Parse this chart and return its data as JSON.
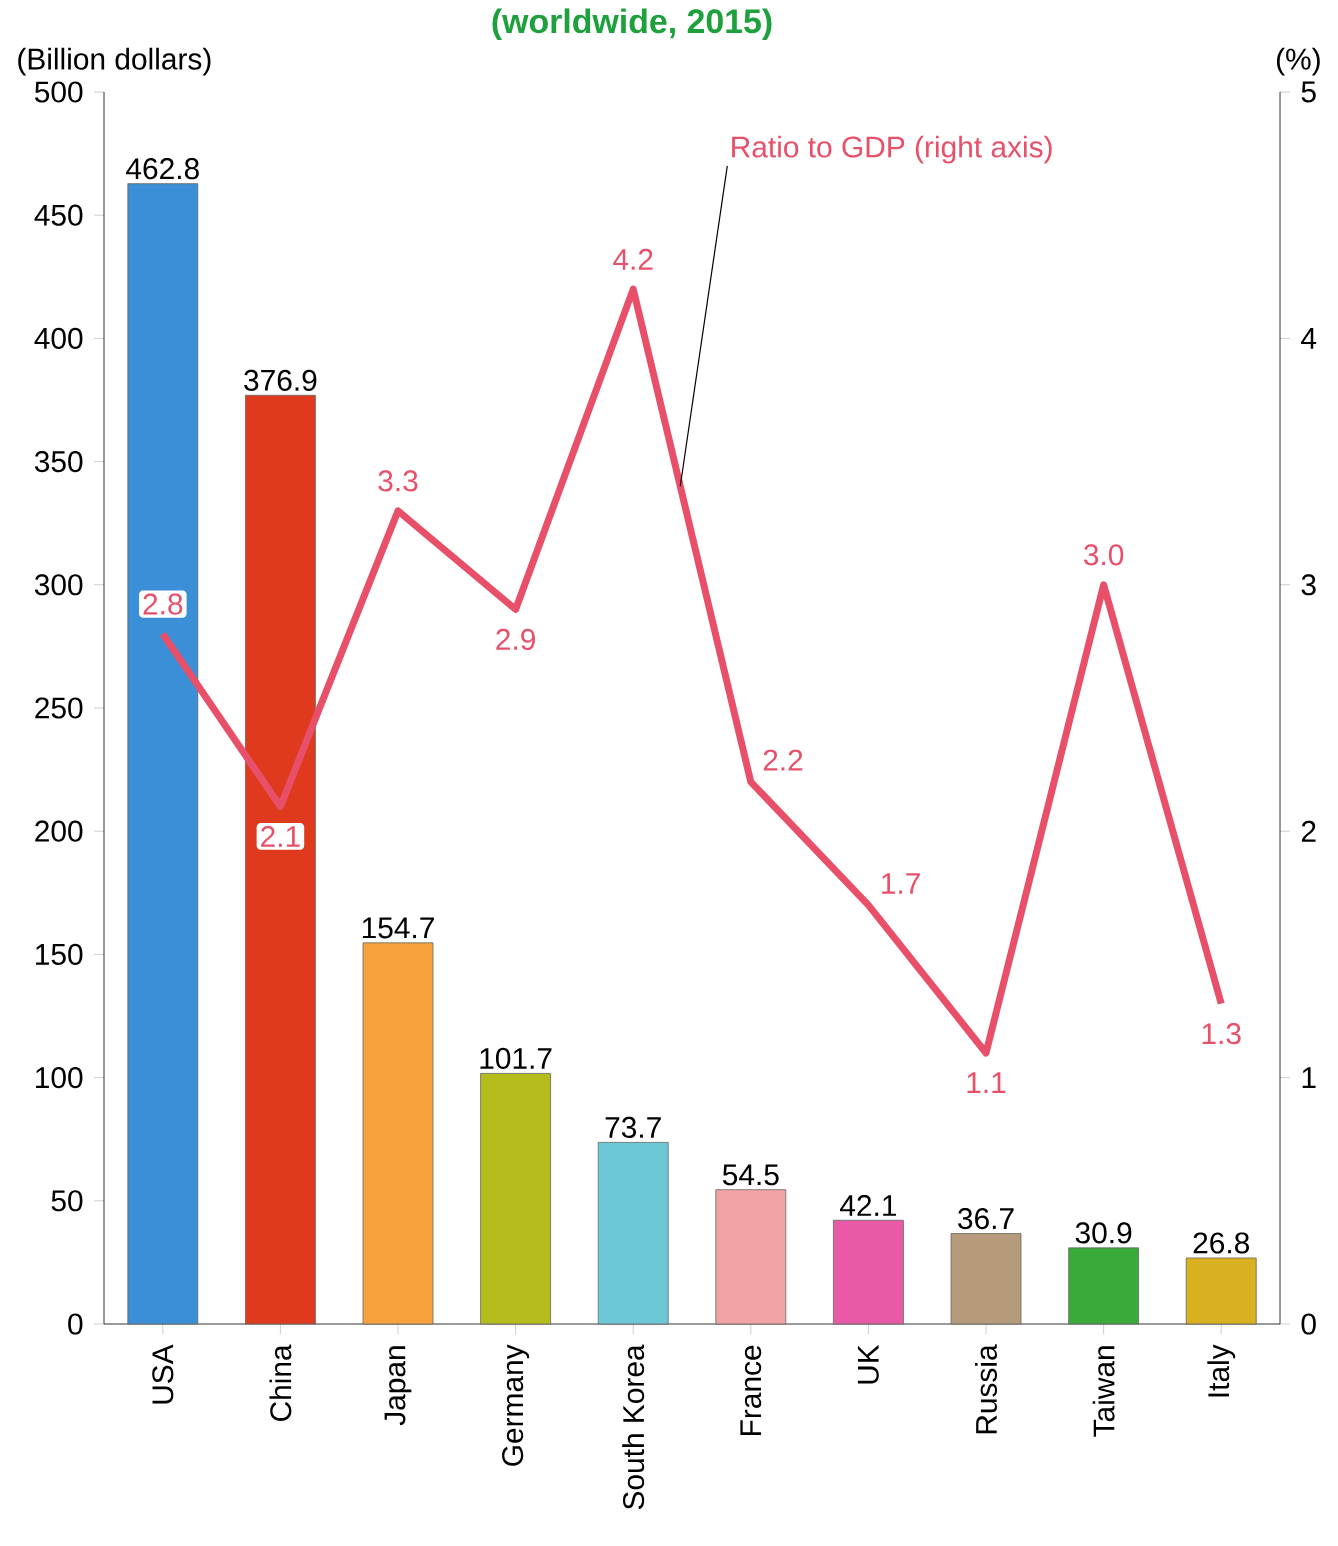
{
  "chart_data": {
    "type": "bar",
    "title": "(worldwide, 2015)",
    "ylabel": "(Billion dollars)",
    "y2label": "(%)",
    "categories": [
      "USA",
      "China",
      "Japan",
      "Germany",
      "South Korea",
      "France",
      "UK",
      "Russia",
      "Taiwan",
      "Italy"
    ],
    "series": [
      {
        "colors": [
          "#3a8fd6",
          "#e03a1e",
          "#f7a23c",
          "#b5bd1c",
          "#6cc7d6",
          "#f2a3a3",
          "#e85aa6",
          "#b59a7c",
          "#3aaa3a",
          "#d8b020"
        ],
        "values": [
          462.8,
          376.9,
          154.7,
          101.7,
          73.7,
          54.5,
          42.1,
          36.7,
          30.9,
          26.8
        ]
      },
      {
        "type": "line",
        "name": "Ratio to GDP (right axis)",
        "axis": "y2",
        "color": "#e8506a",
        "values": [
          2.8,
          2.1,
          3.3,
          2.9,
          4.2,
          2.2,
          1.7,
          1.1,
          3.0,
          1.3
        ],
        "value_labels": [
          "2.8",
          "2.1",
          "3.3",
          "2.9",
          "4.2",
          "2.2",
          "1.7",
          "1.1",
          "3.0",
          "1.3"
        ]
      }
    ],
    "data_labels": true,
    "ylim": [
      0,
      500
    ],
    "yticks": [
      0,
      50,
      100,
      150,
      200,
      250,
      300,
      350,
      400,
      450,
      500
    ],
    "y2lim": [
      0,
      5
    ],
    "y2ticks": [
      0,
      1,
      2,
      3,
      4,
      5
    ]
  }
}
